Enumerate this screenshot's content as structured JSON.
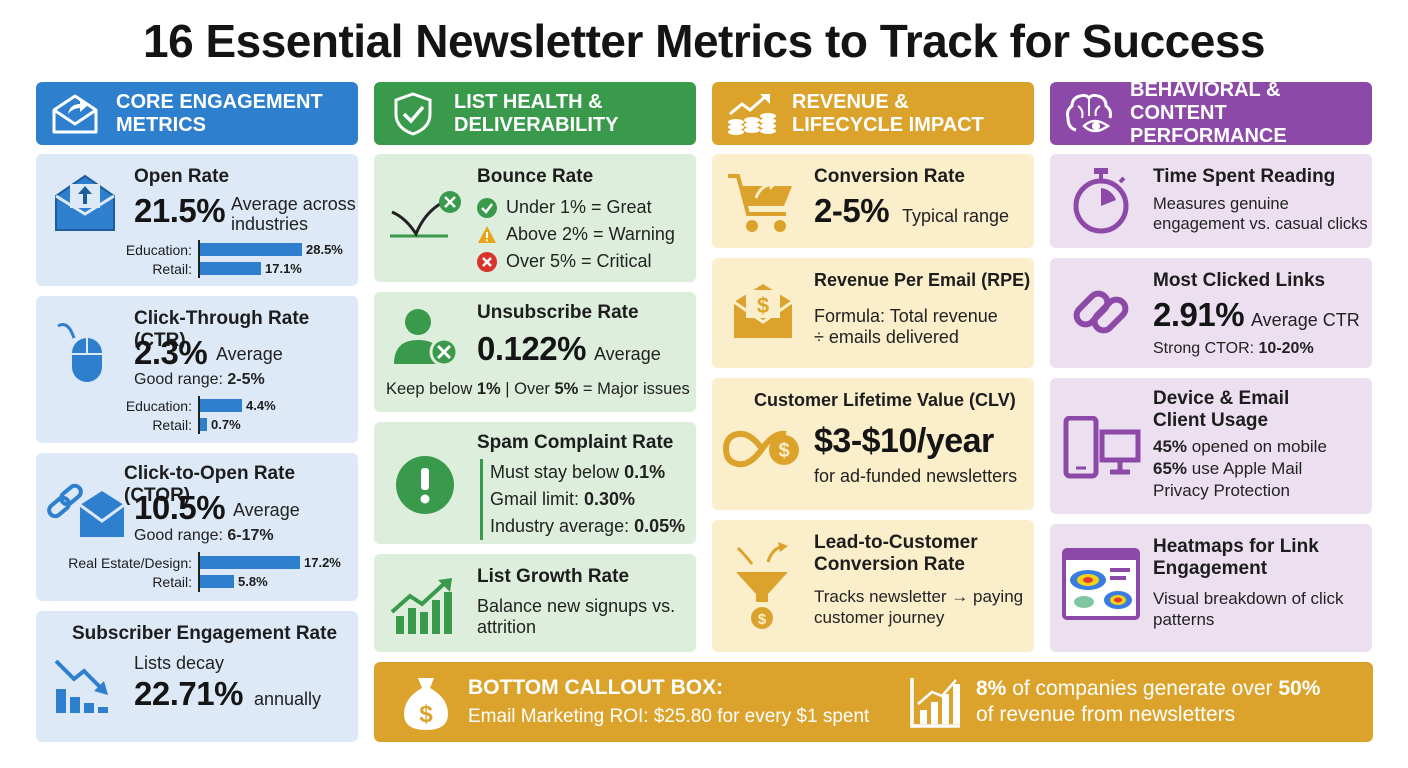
{
  "title": "16 Essential Newsletter Metrics to Track for Success",
  "colors": {
    "blue": "#2f7fcf",
    "green": "#3a9a4c",
    "gold": "#dca32c",
    "purple": "#8c49a8"
  },
  "col1": {
    "header": [
      "CORE ENGAGEMENT",
      "METRICS"
    ],
    "open_rate": {
      "title": "Open Rate",
      "value": "21.5%",
      "desc": [
        "Average across",
        "industries"
      ],
      "bars": [
        {
          "label": "Education:",
          "value": "28.5%",
          "pct": 28.5
        },
        {
          "label": "Retail:",
          "value": "17.1%",
          "pct": 17.1
        }
      ]
    },
    "ctr": {
      "title": "Click-Through Rate (CTR)",
      "value": "2.3%",
      "desc": "Average",
      "range_label": "Good range: ",
      "range": "2-5%",
      "bars": [
        {
          "label": "Education:",
          "value": "4.4%",
          "pct": 4.4
        },
        {
          "label": "Retail:",
          "value": "0.7%",
          "pct": 0.7
        }
      ]
    },
    "ctor": {
      "title": "Click-to-Open Rate (CTOR)",
      "value": "10.5%",
      "desc": "Average",
      "range_label": "Good range: ",
      "range": "6-17%",
      "bars": [
        {
          "label": "Real Estate/Design:",
          "value": "17.2%",
          "pct": 17.2
        },
        {
          "label": "Retail:",
          "value": "5.8%",
          "pct": 5.8
        }
      ]
    },
    "engagement": {
      "title": "Subscriber Engagement Rate",
      "pre": "Lists decay",
      "value": "22.71%",
      "post": "annually"
    }
  },
  "col2": {
    "header": [
      "LIST HEALTH &",
      "DELIVERABILITY"
    ],
    "bounce": {
      "title": "Bounce Rate",
      "items": [
        "Under 1% = Great",
        "Above 2% = Warning",
        "Over 5% = Critical"
      ]
    },
    "unsub": {
      "title": "Unsubscribe Rate",
      "value": "0.122%",
      "desc": "Average",
      "note_a": "Keep below ",
      "note_b": "1%",
      "note_c": " | Over ",
      "note_d": "5%",
      "note_e": " = Major issues"
    },
    "spam": {
      "title": "Spam Complaint Rate",
      "items": [
        {
          "text": "Must stay below ",
          "val": "0.1%"
        },
        {
          "text": "Gmail limit: ",
          "val": "0.30%"
        },
        {
          "text": "Industry average: ",
          "val": "0.05%"
        }
      ]
    },
    "growth": {
      "title": "List Growth Rate",
      "desc": [
        "Balance new signups vs.",
        "attrition"
      ]
    }
  },
  "col3": {
    "header": [
      "REVENUE &",
      "LIFECYCLE IMPACT"
    ],
    "conversion": {
      "title": "Conversion Rate",
      "value": "2-5%",
      "desc": "Typical range"
    },
    "rpe": {
      "title": "Revenue Per Email (RPE)",
      "desc": [
        "Formula: Total revenue",
        "÷ emails delivered"
      ]
    },
    "clv": {
      "title": "Customer Lifetime Value (CLV)",
      "value": "$3-$10/year",
      "desc": "for ad-funded newsletters"
    },
    "lead": {
      "title": [
        "Lead-to-Customer",
        "Conversion Rate"
      ],
      "desc": [
        "Tracks newsletter → paying",
        "customer journey"
      ]
    }
  },
  "col4": {
    "header": [
      "BEHAVIORAL & CONTENT",
      "PERFORMANCE"
    ],
    "time": {
      "title": "Time Spent Reading",
      "desc": [
        "Measures genuine",
        "engagement vs. casual clicks"
      ]
    },
    "links": {
      "title": "Most Clicked Links",
      "value": "2.91%",
      "desc": "Average CTR",
      "sub_label": "Strong CTOR: ",
      "sub_val": "10-20%"
    },
    "device": {
      "title": [
        "Device & Email",
        "Client Usage"
      ],
      "l1_val": "45%",
      "l1_text": " opened on mobile",
      "l2_val": "65%",
      "l2_text": " use Apple Mail",
      "l3": "Privacy Protection"
    },
    "heatmap": {
      "title": [
        "Heatmaps for Link",
        "Engagement"
      ],
      "desc": [
        "Visual breakdown of click",
        "patterns"
      ]
    }
  },
  "bottom": {
    "heading": "BOTTOM CALLOUT BOX:",
    "roi": "Email Marketing ROI: $25.80 for every $1 spent",
    "stat_a": "8%",
    "stat_b": " of companies generate over ",
    "stat_c": "50%",
    "stat_d": "of revenue from newsletters"
  }
}
